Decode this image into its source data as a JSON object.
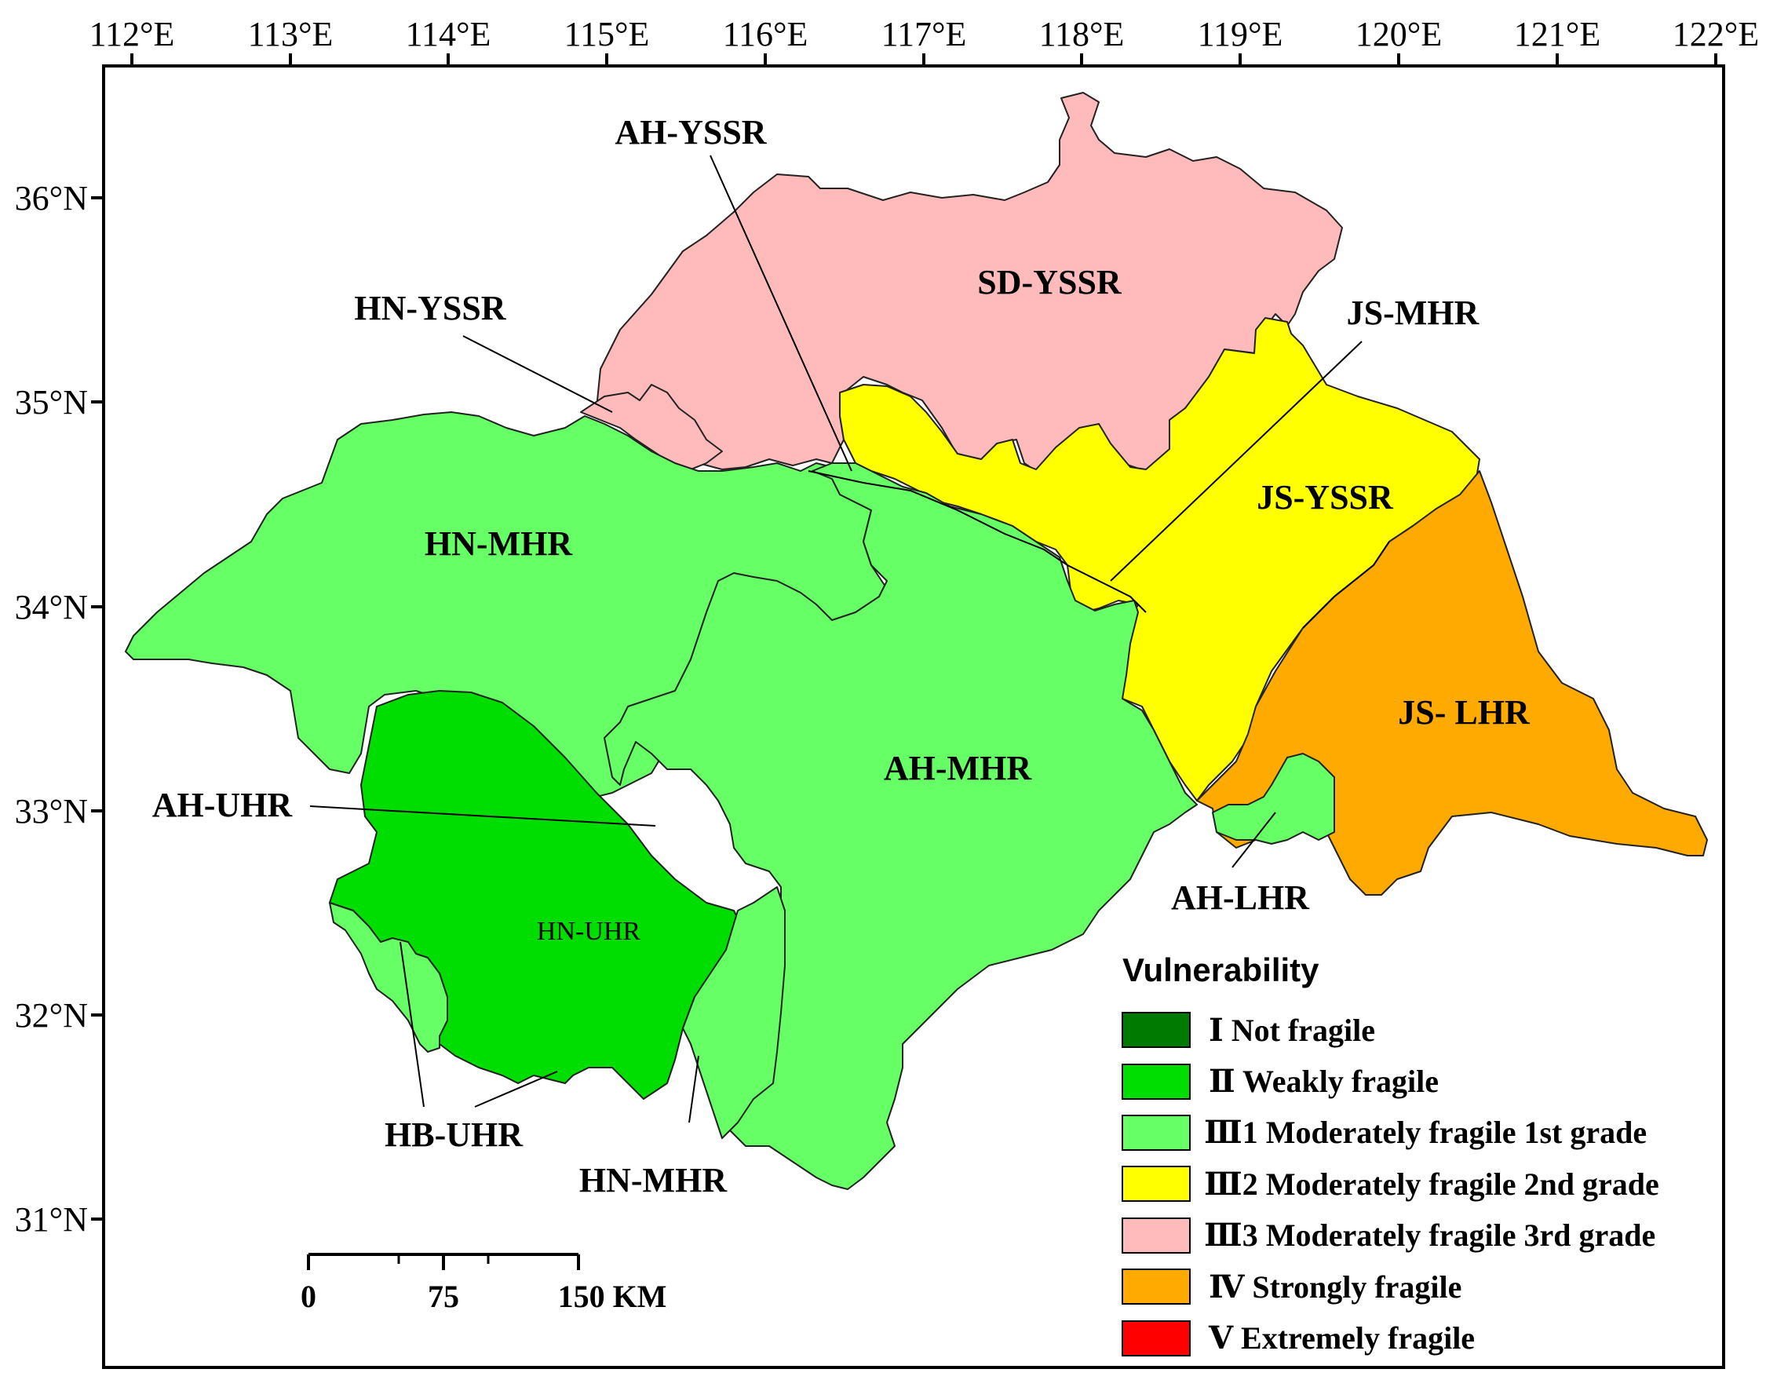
{
  "map": {
    "x_ticks": [
      "112°E",
      "113°E",
      "114°E",
      "115°E",
      "116°E",
      "117°E",
      "118°E",
      "119°E",
      "120°E",
      "121°E",
      "122°E"
    ],
    "y_ticks": [
      "36°N",
      "35°N",
      "34°N",
      "33°N",
      "32°N",
      "31°N"
    ],
    "regions": [
      {
        "label": "SD-YSSR",
        "class": "III3",
        "color": "#ffbbbb"
      },
      {
        "label": "HN-YSSR",
        "class": "III3",
        "color": "#ffbbbb"
      },
      {
        "label": "AH-YSSR",
        "class": "III1",
        "color": "#66ff66"
      },
      {
        "label": "JS-MHR",
        "class": "III2",
        "color": "#ffff00"
      },
      {
        "label": "JS-YSSR",
        "class": "III2",
        "color": "#ffff00"
      },
      {
        "label": "HN-MHR",
        "class": "III1",
        "color": "#66ff66"
      },
      {
        "label": "AH-MHR",
        "class": "III1",
        "color": "#66ff66"
      },
      {
        "label": "JS- LHR",
        "class": "IV",
        "color": "#ffaa00"
      },
      {
        "label": "AH-LHR",
        "class": "III1",
        "color": "#66ff66"
      },
      {
        "label": "AH-UHR",
        "class": "II",
        "color": "#00dd00"
      },
      {
        "label": "HN-UHR",
        "class": "II",
        "color": "#00dd00"
      },
      {
        "label": "HB-UHR",
        "class": "III1",
        "color": "#66ff66"
      },
      {
        "label": "HN-MHR",
        "class": "III1",
        "color": "#66ff66"
      }
    ]
  },
  "legend": {
    "title": "Vulnerability",
    "items": [
      {
        "label": "Ⅰ  Not fragile",
        "color": "#007a00"
      },
      {
        "label": "Ⅱ  Weakly fragile",
        "color": "#00dd00"
      },
      {
        "label": "Ⅲ1  Moderately fragile 1st grade",
        "color": "#66ff66"
      },
      {
        "label": "Ⅲ2  Moderately fragile 2nd grade",
        "color": "#ffff00"
      },
      {
        "label": "Ⅲ3  Moderately fragile 3rd grade",
        "color": "#ffbbbb"
      },
      {
        "label": "Ⅳ  Strongly fragile",
        "color": "#ffaa00"
      },
      {
        "label": "Ⅴ  Extremely fragile",
        "color": "#ff0000"
      }
    ]
  },
  "scale_bar": {
    "labels": [
      "0",
      "75",
      "150 KM"
    ]
  }
}
